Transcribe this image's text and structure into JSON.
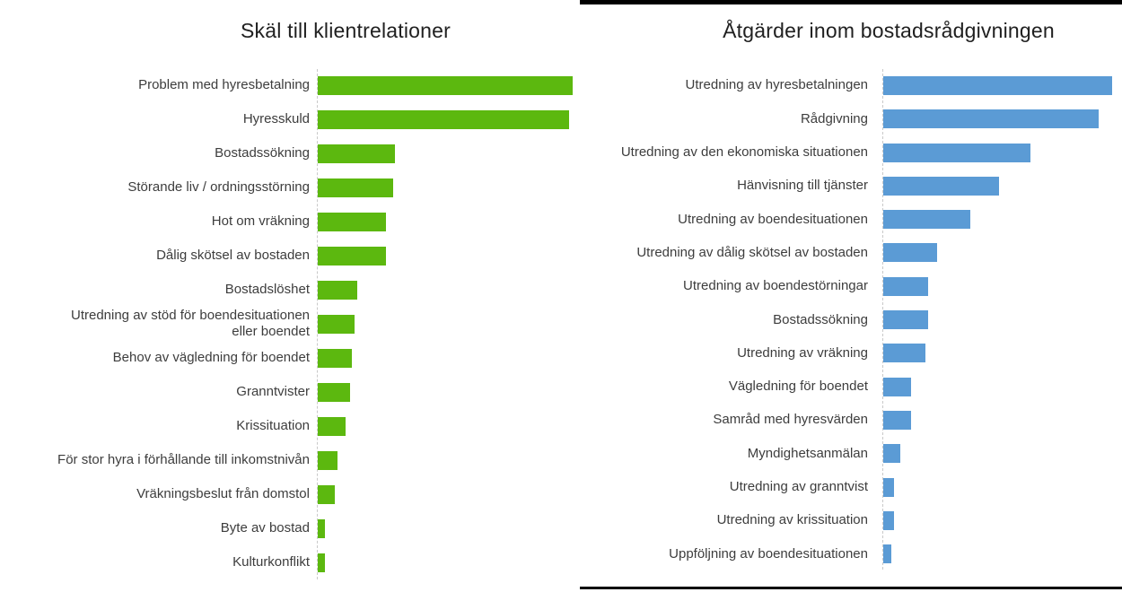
{
  "slide": {
    "background": "#ffffff",
    "decor": {
      "top_rule": "horizontal black line above right chart",
      "bottom_rule": "horizontal black line below right chart"
    }
  },
  "styles": {
    "title_color": "#202020",
    "label_color": "#3d3d3d",
    "axis_color": "#c9c9c9",
    "rule_color": "#000000",
    "green": "#5cb80f",
    "blue": "#5b9bd5"
  },
  "chart_data": [
    {
      "type": "bar",
      "orientation": "horizontal",
      "title": "Skäl till klientrelationer",
      "bar_color": "#5cb80f",
      "value_axis": "hidden (no ticks, no gridlines, no data labels)",
      "value_unit": "relative bar length in screen px (no numeric axis shown)",
      "legend": false,
      "grid": false,
      "categories": [
        "Problem med hyresbetalning",
        "Hyresskuld",
        "Bostadssökning",
        "Störande liv / ordningsstörning",
        "Hot om vräkning",
        "Dålig skötsel av bostaden",
        "Bostadslöshet",
        "Utredning av stöd för boendesituationen\neller boendet",
        "Behov av vägledning för boendet",
        "Granntvister",
        "Krissituation",
        "För stor hyra i förhållande till inkomstnivån",
        "Vräkningsbeslut från domstol",
        "Byte av bostad",
        "Kulturkonflikt"
      ],
      "values": [
        284,
        280,
        86,
        84,
        76,
        76,
        44,
        41,
        38,
        36,
        31,
        22,
        19,
        8,
        8
      ]
    },
    {
      "type": "bar",
      "orientation": "horizontal",
      "title": "Åtgärder inom bostadsrådgivningen",
      "bar_color": "#5b9bd5",
      "value_axis": "hidden (no ticks, no gridlines, no data labels)",
      "value_unit": "relative bar length in screen px (no numeric axis shown)",
      "legend": false,
      "grid": false,
      "categories": [
        "Utredning av hyresbetalningen",
        "Rådgivning",
        "Utredning av den ekonomiska situationen",
        "Hänvisning till tjänster",
        "Utredning av boendesituationen",
        "Utredning av dålig skötsel av bostaden",
        "Utredning av boendestörningar",
        "Bostadssökning",
        "Utredning av vräkning",
        "Vägledning för boendet",
        "Samråd med hyresvärden",
        "Myndighetsanmälan",
        "Utredning av granntvist",
        "Utredning av krissituation",
        "Uppföljning av boendesituationen"
      ],
      "values": [
        255,
        240,
        164,
        129,
        97,
        60,
        50,
        50,
        47,
        31,
        31,
        19,
        12,
        12,
        9
      ]
    }
  ]
}
